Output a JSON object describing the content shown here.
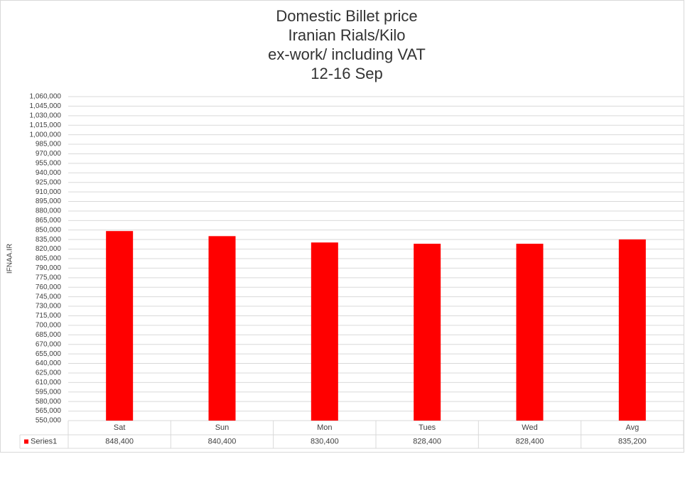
{
  "chart_data": {
    "type": "bar",
    "title": [
      "Domestic  Billet price",
      "Iranian Rials/Kilo",
      "ex-work/ including VAT",
      "12-16 Sep"
    ],
    "y_label": "IFNAA.IR",
    "categories": [
      "Sat",
      "Sun",
      "Mon",
      "Tues",
      "Wed",
      "Avg"
    ],
    "series": [
      {
        "name": "Series1",
        "color": "#ff0000",
        "values": [
          848400,
          840400,
          830400,
          828400,
          828400,
          835200
        ],
        "value_labels": [
          "848,400",
          "840,400",
          "830,400",
          "828,400",
          "828,400",
          "835,200"
        ]
      }
    ],
    "ylim": [
      550000,
      1060000
    ],
    "yticks": [
      {
        "value": 550000,
        "label": "550,000"
      },
      {
        "value": 565000,
        "label": "565,000"
      },
      {
        "value": 580000,
        "label": "580,000"
      },
      {
        "value": 595000,
        "label": "595,000"
      },
      {
        "value": 610000,
        "label": "610,000"
      },
      {
        "value": 625000,
        "label": "625,000"
      },
      {
        "value": 640000,
        "label": "640,000"
      },
      {
        "value": 655000,
        "label": "655,000"
      },
      {
        "value": 670000,
        "label": "670,000"
      },
      {
        "value": 685000,
        "label": "685,000"
      },
      {
        "value": 700000,
        "label": "700,000"
      },
      {
        "value": 715000,
        "label": "715,000"
      },
      {
        "value": 730000,
        "label": "730,000"
      },
      {
        "value": 745000,
        "label": "745,000"
      },
      {
        "value": 760000,
        "label": "760,000"
      },
      {
        "value": 775000,
        "label": "775,000"
      },
      {
        "value": 790000,
        "label": "790,000"
      },
      {
        "value": 805000,
        "label": "805,000"
      },
      {
        "value": 820000,
        "label": "820,000"
      },
      {
        "value": 835000,
        "label": "835,000"
      },
      {
        "value": 850000,
        "label": "850,000"
      },
      {
        "value": 865000,
        "label": "865,000"
      },
      {
        "value": 880000,
        "label": "880,000"
      },
      {
        "value": 895000,
        "label": "895,000"
      },
      {
        "value": 910000,
        "label": "910,000"
      },
      {
        "value": 925000,
        "label": "925,000"
      },
      {
        "value": 940000,
        "label": "940,000"
      },
      {
        "value": 955000,
        "label": "955,000"
      },
      {
        "value": 970000,
        "label": "970,000"
      },
      {
        "value": 985000,
        "label": "985,000"
      },
      {
        "value": 1000000,
        "label": "1,000,000"
      },
      {
        "value": 1015000,
        "label": "1,015,000"
      },
      {
        "value": 1030000,
        "label": "1,030,000"
      },
      {
        "value": 1045000,
        "label": "1,045,000"
      },
      {
        "value": 1060000,
        "label": "1,060,000"
      }
    ],
    "grid": true
  }
}
